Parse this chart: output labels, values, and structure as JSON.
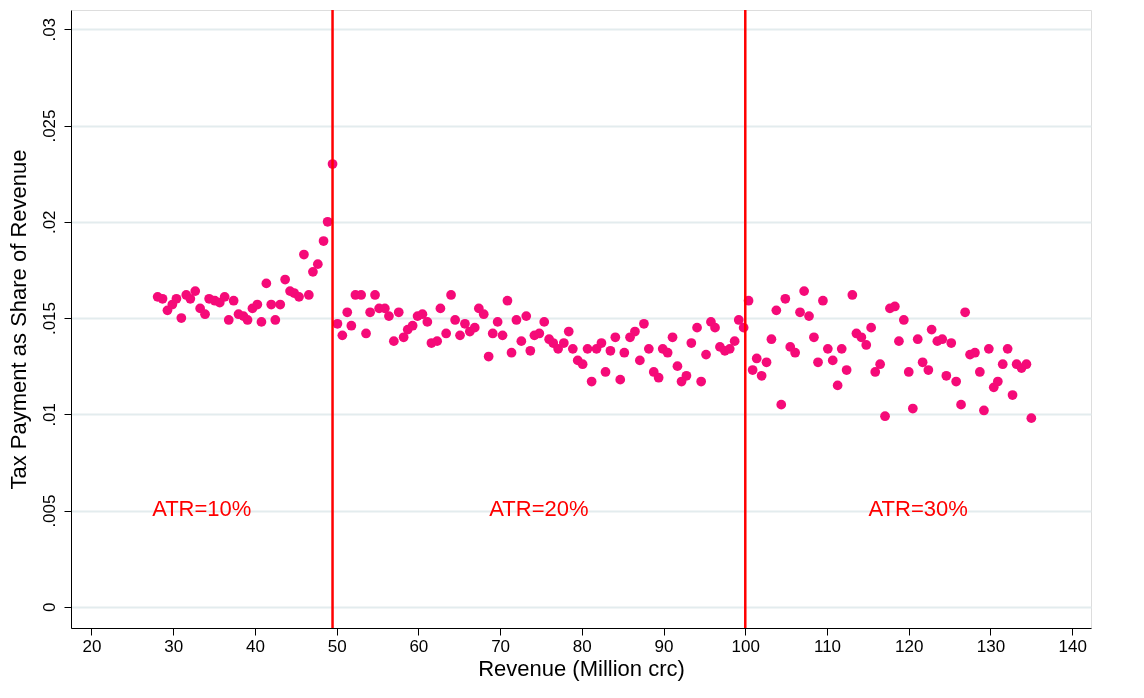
{
  "chart_data": {
    "type": "scatter",
    "xlabel": "Revenue (Million crc)",
    "ylabel": "Tax Payment as Share of Revenue",
    "x": [
      28.1,
      28.7,
      29.3,
      29.9,
      30.4,
      31.0,
      31.6,
      32.1,
      32.7,
      33.3,
      33.9,
      34.4,
      35.1,
      35.7,
      36.3,
      36.8,
      37.4,
      38.0,
      38.6,
      39.1,
      39.7,
      40.3,
      40.8,
      41.4,
      42.0,
      42.5,
      43.1,
      43.7,
      44.3,
      44.8,
      45.4,
      46.0,
      46.6,
      47.1,
      47.7,
      48.4,
      48.9,
      49.5,
      50.1,
      50.7,
      51.3,
      51.8,
      52.3,
      53.0,
      53.6,
      54.1,
      54.7,
      55.2,
      55.9,
      56.4,
      57.0,
      57.6,
      58.2,
      58.7,
      59.3,
      59.9,
      60.5,
      61.1,
      61.6,
      62.3,
      62.7,
      63.4,
      64.0,
      64.5,
      65.1,
      65.7,
      66.3,
      66.9,
      67.4,
      68.0,
      68.6,
      69.1,
      69.7,
      70.3,
      70.9,
      71.4,
      72.0,
      72.6,
      73.2,
      73.7,
      74.2,
      74.8,
      75.4,
      76.0,
      76.5,
      77.1,
      77.8,
      78.4,
      78.9,
      79.5,
      80.1,
      80.7,
      81.2,
      81.8,
      82.4,
      82.9,
      83.5,
      84.1,
      84.7,
      85.2,
      85.9,
      86.5,
      87.1,
      87.6,
      88.2,
      88.8,
      89.4,
      89.9,
      90.5,
      91.1,
      91.7,
      92.2,
      92.8,
      93.4,
      94.1,
      94.6,
      95.2,
      95.8,
      96.3,
      96.9,
      97.5,
      98.1,
      98.7,
      99.2,
      99.8,
      100.4,
      100.9,
      101.4,
      102.0,
      102.6,
      103.2,
      103.8,
      104.4,
      104.9,
      105.5,
      106.1,
      106.7,
      107.2,
      107.8,
      108.4,
      108.9,
      109.5,
      110.1,
      110.7,
      111.3,
      111.8,
      112.4,
      113.1,
      113.6,
      114.2,
      114.8,
      115.4,
      115.9,
      116.5,
      117.1,
      117.7,
      118.3,
      118.8,
      119.4,
      120.0,
      120.5,
      121.1,
      121.7,
      122.4,
      122.8,
      123.5,
      124.1,
      124.6,
      125.2,
      125.8,
      126.4,
      126.9,
      127.5,
      128.1,
      128.7,
      129.2,
      129.8,
      130.4,
      130.9,
      131.5,
      132.1,
      132.7,
      133.2,
      133.8,
      134.4,
      135.0
    ],
    "values": [
      0.0161,
      0.016,
      0.0154,
      0.0157,
      0.016,
      0.015,
      0.0162,
      0.016,
      0.0164,
      0.0155,
      0.0152,
      0.016,
      0.0159,
      0.0158,
      0.0161,
      0.0149,
      0.0159,
      0.0152,
      0.0151,
      0.0149,
      0.0155,
      0.0157,
      0.0148,
      0.0168,
      0.0157,
      0.0149,
      0.0157,
      0.017,
      0.0164,
      0.0163,
      0.0161,
      0.0183,
      0.0162,
      0.0174,
      0.0178,
      0.019,
      0.02,
      0.023,
      0.0147,
      0.0141,
      0.0153,
      0.0146,
      0.0162,
      0.0162,
      0.0142,
      0.0153,
      0.0162,
      0.0155,
      0.0155,
      0.0151,
      0.0138,
      0.0153,
      0.014,
      0.0144,
      0.0146,
      0.0151,
      0.0152,
      0.0148,
      0.0137,
      0.0138,
      0.0155,
      0.0142,
      0.0162,
      0.0149,
      0.0141,
      0.0147,
      0.0143,
      0.0145,
      0.0155,
      0.0152,
      0.013,
      0.0142,
      0.0148,
      0.0141,
      0.0159,
      0.0132,
      0.0149,
      0.0138,
      0.0151,
      0.0133,
      0.0141,
      0.0142,
      0.0148,
      0.0139,
      0.0137,
      0.0134,
      0.0137,
      0.0143,
      0.0134,
      0.0128,
      0.0126,
      0.0134,
      0.0117,
      0.0134,
      0.0137,
      0.0122,
      0.0133,
      0.014,
      0.0118,
      0.0132,
      0.014,
      0.0143,
      0.0128,
      0.0147,
      0.0134,
      0.0122,
      0.0119,
      0.0134,
      0.0132,
      0.014,
      0.0125,
      0.0117,
      0.012,
      0.0137,
      0.0145,
      0.0117,
      0.0131,
      0.0148,
      0.0145,
      0.0135,
      0.0133,
      0.0134,
      0.0138,
      0.0149,
      0.0145,
      0.0159,
      0.0123,
      0.0129,
      0.012,
      0.0127,
      0.0139,
      0.0154,
      0.0105,
      0.016,
      0.0135,
      0.0132,
      0.0153,
      0.0164,
      0.0151,
      0.014,
      0.0127,
      0.0159,
      0.0134,
      0.0128,
      0.0115,
      0.0134,
      0.0123,
      0.0162,
      0.0142,
      0.014,
      0.0136,
      0.0145,
      0.0122,
      0.0126,
      0.0099,
      0.0155,
      0.0156,
      0.0138,
      0.0149,
      0.0122,
      0.0103,
      0.0139,
      0.0127,
      0.0123,
      0.0144,
      0.0138,
      0.0139,
      0.012,
      0.0137,
      0.0117,
      0.0105,
      0.0153,
      0.0131,
      0.0132,
      0.0122,
      0.0102,
      0.0134,
      0.0114,
      0.0117,
      0.0126,
      0.0134,
      0.011,
      0.0126,
      0.0124,
      0.0126,
      0.0098
    ],
    "color": "#f50a78",
    "marker": "circle",
    "xlim": [
      17.5,
      142.3
    ],
    "ylim": [
      -0.0011,
      0.031
    ],
    "xticks": [
      20,
      30,
      40,
      50,
      60,
      70,
      80,
      90,
      100,
      110,
      120,
      130,
      140
    ],
    "yticks": [
      {
        "value": 0,
        "label": "0"
      },
      {
        "value": 0.005,
        "label": ".005"
      },
      {
        "value": 0.01,
        "label": ".01"
      },
      {
        "value": 0.015,
        "label": ".015"
      },
      {
        "value": 0.02,
        "label": ".02"
      },
      {
        "value": 0.025,
        "label": ".025"
      },
      {
        "value": 0.03,
        "label": ".03"
      }
    ],
    "grid": "y",
    "legend": false,
    "ref_lines": [
      {
        "axis": "x",
        "value": 49.5,
        "color": "#ff0000"
      },
      {
        "axis": "x",
        "value": 100,
        "color": "#ff0000"
      }
    ],
    "annotations": [
      "ATR=10%",
      "ATR=20%",
      "ATR=30%"
    ]
  }
}
